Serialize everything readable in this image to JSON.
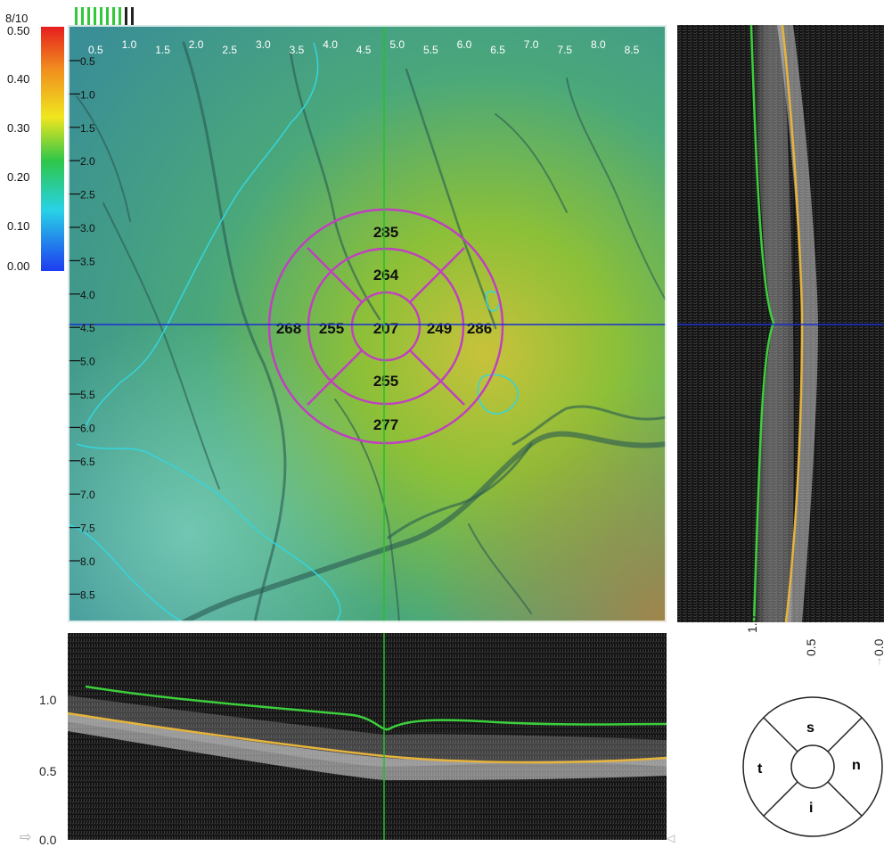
{
  "quality": {
    "label": "8/10",
    "total": 10,
    "filled": 8,
    "color_good": "#2fc93a",
    "color_empty": "#222222"
  },
  "colorbar": {
    "max_label": "0.50",
    "ticks": [
      "0.50",
      "0.40",
      "0.30",
      "0.20",
      "0.10",
      "0.00"
    ],
    "colors": [
      "#e61e1e",
      "#f08c1e",
      "#f0e61e",
      "#2ec64a",
      "#28d2e6",
      "#1e3cf0"
    ]
  },
  "fundus": {
    "x_ticks": [
      "0.5",
      "1.0",
      "1.5",
      "2.0",
      "2.5",
      "3.0",
      "3.5",
      "4.0",
      "4.5",
      "5.0",
      "5.5",
      "6.0",
      "6.5",
      "7.0",
      "7.5",
      "8.0",
      "8.5"
    ],
    "y_ticks": [
      "0.5",
      "1.0",
      "1.5",
      "2.0",
      "2.5",
      "3.0",
      "3.5",
      "4.0",
      "4.5",
      "5.0",
      "5.5",
      "6.0",
      "6.5",
      "7.0",
      "7.5",
      "8.0",
      "8.5"
    ],
    "crosshair_h_color": "#1a2fd0",
    "crosshair_v_color": "#22c22a"
  },
  "etdrs": {
    "center": "207",
    "inner_superior": "264",
    "inner_temporal": "255",
    "inner_nasal": "249",
    "inner_inferior": "255",
    "outer_superior": "285",
    "outer_temporal": "268",
    "outer_nasal": "286",
    "outer_inferior": "277",
    "ring_color": "#c040c0"
  },
  "bscan_vertical": {
    "ticks": [
      "1.0",
      "0.5",
      "0.0"
    ],
    "ilm_color": "#3ccf3c",
    "rpe_color": "#e6b43c"
  },
  "bscan_horizontal": {
    "ticks": [
      "1.0",
      "0.5",
      "0.0"
    ],
    "ilm_color": "#3ccf3c",
    "rpe_color": "#e6b43c"
  },
  "sector_legend": {
    "superior": "s",
    "temporal": "t",
    "nasal": "n",
    "inferior": "i"
  }
}
